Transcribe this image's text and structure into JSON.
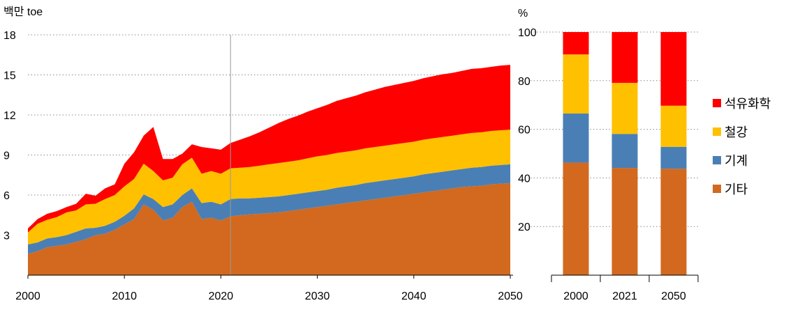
{
  "colors": {
    "기타": "#d2691e",
    "기계": "#4a7fb5",
    "철강": "#ffc000",
    "석유화학": "#ff0000",
    "grid": "#888888",
    "marker": "#999999"
  },
  "chart_data": [
    {
      "type": "area",
      "stacked": true,
      "ylabel": "백만 toe",
      "xlim": [
        2000,
        2050
      ],
      "ylim": [
        0,
        18
      ],
      "x_ticks": [
        2000,
        2010,
        2020,
        2030,
        2040,
        2050
      ],
      "y_ticks": [
        3,
        6,
        9,
        12,
        15,
        18
      ],
      "grid": "horizontal dotted",
      "marker_line_x": 2021,
      "x": [
        2000,
        2001,
        2002,
        2003,
        2004,
        2005,
        2006,
        2007,
        2008,
        2009,
        2010,
        2011,
        2012,
        2013,
        2014,
        2015,
        2016,
        2017,
        2018,
        2019,
        2020,
        2021,
        2022,
        2023,
        2024,
        2025,
        2026,
        2027,
        2028,
        2029,
        2030,
        2031,
        2032,
        2033,
        2034,
        2035,
        2036,
        2037,
        2038,
        2039,
        2040,
        2041,
        2042,
        2043,
        2044,
        2045,
        2046,
        2047,
        2048,
        2049,
        2050
      ],
      "series": [
        {
          "name": "기타",
          "values": [
            1.6,
            1.8,
            2.1,
            2.2,
            2.3,
            2.5,
            2.7,
            3.0,
            3.1,
            3.4,
            3.8,
            4.2,
            5.3,
            4.9,
            4.1,
            4.3,
            5.1,
            5.5,
            4.2,
            4.3,
            4.1,
            4.4,
            4.5,
            4.55,
            4.6,
            4.65,
            4.7,
            4.8,
            4.9,
            5.0,
            5.1,
            5.2,
            5.3,
            5.4,
            5.5,
            5.6,
            5.7,
            5.8,
            5.9,
            6.0,
            6.1,
            6.2,
            6.3,
            6.4,
            6.5,
            6.6,
            6.65,
            6.7,
            6.8,
            6.85,
            6.9
          ]
        },
        {
          "name": "기계",
          "values": [
            0.7,
            0.65,
            0.65,
            0.65,
            0.7,
            0.75,
            0.8,
            0.55,
            0.6,
            0.6,
            0.65,
            0.8,
            0.75,
            0.8,
            1.0,
            1.0,
            0.9,
            1.0,
            1.2,
            1.2,
            1.2,
            1.3,
            1.25,
            1.2,
            1.2,
            1.2,
            1.2,
            1.2,
            1.2,
            1.2,
            1.2,
            1.2,
            1.25,
            1.25,
            1.25,
            1.3,
            1.3,
            1.3,
            1.3,
            1.3,
            1.3,
            1.35,
            1.35,
            1.35,
            1.35,
            1.35,
            1.4,
            1.4,
            1.4,
            1.4,
            1.4
          ]
        },
        {
          "name": "철강",
          "values": [
            0.9,
            1.4,
            1.4,
            1.5,
            1.7,
            1.6,
            1.8,
            1.8,
            2.0,
            2.0,
            2.2,
            2.2,
            2.3,
            2.1,
            2.0,
            2.0,
            2.3,
            2.3,
            2.2,
            2.3,
            2.3,
            2.3,
            2.3,
            2.35,
            2.4,
            2.45,
            2.5,
            2.5,
            2.5,
            2.55,
            2.6,
            2.6,
            2.6,
            2.6,
            2.6,
            2.6,
            2.6,
            2.6,
            2.6,
            2.6,
            2.6,
            2.6,
            2.6,
            2.6,
            2.6,
            2.6,
            2.6,
            2.6,
            2.6,
            2.6,
            2.6
          ]
        },
        {
          "name": "석유화학",
          "values": [
            0.3,
            0.35,
            0.45,
            0.45,
            0.4,
            0.5,
            0.8,
            0.6,
            0.8,
            0.8,
            1.7,
            2.0,
            2.1,
            3.3,
            1.6,
            1.4,
            0.8,
            1.0,
            2.0,
            1.7,
            1.8,
            1.9,
            2.1,
            2.3,
            2.5,
            2.75,
            3.0,
            3.2,
            3.35,
            3.5,
            3.6,
            3.75,
            3.9,
            4.0,
            4.1,
            4.2,
            4.3,
            4.4,
            4.45,
            4.5,
            4.55,
            4.6,
            4.65,
            4.7,
            4.7,
            4.75,
            4.8,
            4.8,
            4.8,
            4.85,
            4.85
          ]
        }
      ]
    },
    {
      "type": "bar",
      "stacked": true,
      "percent": true,
      "ylabel": "%",
      "ylim": [
        0,
        100
      ],
      "y_ticks": [
        20,
        40,
        60,
        80,
        100
      ],
      "grid": "horizontal dotted",
      "categories": [
        "2000",
        "2021",
        "2050"
      ],
      "series": [
        {
          "name": "기타",
          "values": [
            46.3,
            44.1,
            43.8
          ]
        },
        {
          "name": "기계",
          "values": [
            20.2,
            14.0,
            9.0
          ]
        },
        {
          "name": "철강",
          "values": [
            24.3,
            21.0,
            16.9
          ]
        },
        {
          "name": "석유화학",
          "values": [
            9.2,
            20.9,
            30.3
          ]
        }
      ]
    }
  ],
  "legend": {
    "items": [
      {
        "label": "석유화학",
        "color_key": "석유화학"
      },
      {
        "label": "철강",
        "color_key": "철강"
      },
      {
        "label": "기계",
        "color_key": "기계"
      },
      {
        "label": "기타",
        "color_key": "기타"
      }
    ]
  }
}
